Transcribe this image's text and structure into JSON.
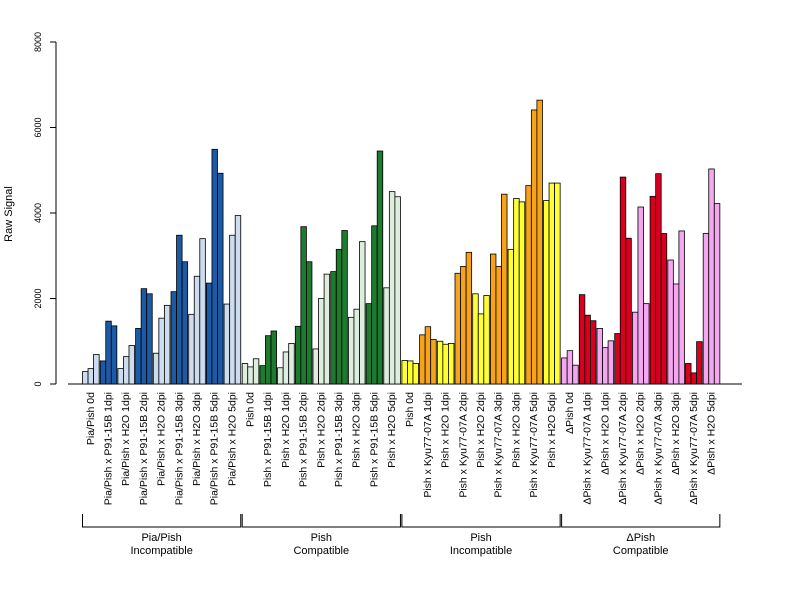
{
  "chart_data": {
    "type": "bar",
    "ylabel": "Raw Signal",
    "ylim": [
      0,
      8000
    ],
    "yticks": [
      "0",
      "2000",
      "4000",
      "6000",
      "8000"
    ],
    "grid": false,
    "groups": [
      {
        "name": "Pia/Pish 0d",
        "color": "#cddcee",
        "values": [
          290,
          360,
          690
        ]
      },
      {
        "name": "Pia/Pish x P91-15B 1dpi",
        "color": "#1c5aa6",
        "values": [
          540,
          1470,
          1360
        ]
      },
      {
        "name": "Pia/Pish x H2O 1dpi",
        "color": "#cddcee",
        "values": [
          360,
          640,
          900
        ]
      },
      {
        "name": "Pia/Pish x P91-15B 2dpi",
        "color": "#1c5aa6",
        "values": [
          1300,
          2230,
          2110
        ]
      },
      {
        "name": "Pia/Pish x H2O 2dpi",
        "color": "#cddcee",
        "values": [
          720,
          1540,
          1840
        ]
      },
      {
        "name": "Pia/Pish x P91-15B 3dpi",
        "color": "#1c5aa6",
        "values": [
          2160,
          3480,
          2860
        ]
      },
      {
        "name": "Pia/Pish x H2O 3dpi",
        "color": "#cddcee",
        "values": [
          1630,
          2520,
          3400
        ]
      },
      {
        "name": "Pia/Pish x P91-15B 5dpi",
        "color": "#1c5aa6",
        "values": [
          2360,
          5490,
          4930
        ]
      },
      {
        "name": "Pia/Pish x H2O 5dpi",
        "color": "#cddcee",
        "values": [
          1870,
          3480,
          3940
        ]
      },
      {
        "name": "Pish 0d",
        "color": "#deeede",
        "values": [
          480,
          400,
          590
        ]
      },
      {
        "name": "Pish x P91-15B 1dpi",
        "color": "#1e7a2e",
        "values": [
          430,
          1130,
          1240
        ]
      },
      {
        "name": "Pish x H2O 1dpi",
        "color": "#deeede",
        "values": [
          380,
          750,
          950
        ]
      },
      {
        "name": "Pish x P91-15B 2dpi",
        "color": "#1e7a2e",
        "values": [
          1350,
          3680,
          2860
        ]
      },
      {
        "name": "Pish x H2O 2dpi",
        "color": "#deeede",
        "values": [
          820,
          2000,
          2570
        ]
      },
      {
        "name": "Pish x P91-15B 3dpi",
        "color": "#1e7a2e",
        "values": [
          2630,
          3150,
          3590
        ]
      },
      {
        "name": "Pish x H2O 3dpi",
        "color": "#deeede",
        "values": [
          1560,
          1750,
          3330
        ]
      },
      {
        "name": "Pish x P91-15B 5dpi",
        "color": "#1e7a2e",
        "values": [
          1880,
          3700,
          5450
        ]
      },
      {
        "name": "Pish x H2O 5dpi",
        "color": "#deeede",
        "values": [
          2250,
          4500,
          4380
        ]
      },
      {
        "name": "Pish 0d",
        "color": "#ffff33",
        "values": [
          550,
          540,
          480
        ]
      },
      {
        "name": "Pish x Kyu77-07A 1dpi",
        "color": "#f7a21b",
        "values": [
          1150,
          1340,
          1040
        ]
      },
      {
        "name": "Pish x H2O 1dpi",
        "color": "#ffff33",
        "values": [
          1000,
          930,
          950
        ]
      },
      {
        "name": "Pish x Kyu77-07A 2dpi",
        "color": "#f7a21b",
        "values": [
          2590,
          2750,
          3080
        ]
      },
      {
        "name": "Pish x H2O 2dpi",
        "color": "#ffff33",
        "values": [
          2110,
          1640,
          2070
        ]
      },
      {
        "name": "Pish x Kyu77-07A 3dpi",
        "color": "#f7a21b",
        "values": [
          3040,
          2750,
          4440
        ]
      },
      {
        "name": "Pish x H2O 3dpi",
        "color": "#ffff33",
        "values": [
          3150,
          4340,
          4260
        ]
      },
      {
        "name": "Pish x Kyu77-07A 5dpi",
        "color": "#f7a21b",
        "values": [
          4640,
          6410,
          6640
        ]
      },
      {
        "name": "Pish x H2O 5dpi",
        "color": "#ffff33",
        "values": [
          4290,
          4700,
          4700
        ]
      },
      {
        "name": "ΔPish 0d",
        "color": "#f4a6ee",
        "values": [
          610,
          780,
          440
        ]
      },
      {
        "name": "ΔPish x Kyu77-07A 1dpi",
        "color": "#d7001f",
        "values": [
          2090,
          1610,
          1480
        ]
      },
      {
        "name": "ΔPish x H2O 1dpi",
        "color": "#f4a6ee",
        "values": [
          1300,
          850,
          1010
        ]
      },
      {
        "name": "ΔPish x Kyu77-07A 2dpi",
        "color": "#d7001f",
        "values": [
          1180,
          4840,
          3410
        ]
      },
      {
        "name": "ΔPish x H2O 2dpi",
        "color": "#f4a6ee",
        "values": [
          1680,
          4140,
          1880
        ]
      },
      {
        "name": "ΔPish x Kyu77-07A 3dpi",
        "color": "#d7001f",
        "values": [
          4390,
          4920,
          3520
        ]
      },
      {
        "name": "ΔPish x H2O 3dpi",
        "color": "#f4a6ee",
        "values": [
          2900,
          2340,
          3580
        ]
      },
      {
        "name": "ΔPish x Kyu77-07A 5dpi",
        "color": "#d7001f",
        "values": [
          480,
          260,
          990
        ]
      },
      {
        "name": "ΔPish x H2O 5dpi",
        "color": "#f4a6ee",
        "values": [
          3520,
          5030,
          4220
        ]
      }
    ],
    "brackets": [
      {
        "line1": "Pia/Pish",
        "line2": "Incompatible",
        "first_group": 0,
        "last_group": 8
      },
      {
        "line1": "Pish",
        "line2": "Compatible",
        "first_group": 9,
        "last_group": 17
      },
      {
        "line1": "Pish",
        "line2": "Incompatible",
        "first_group": 18,
        "last_group": 26
      },
      {
        "line1": "ΔPish",
        "line2": "Compatible",
        "first_group": 27,
        "last_group": 35
      }
    ]
  }
}
